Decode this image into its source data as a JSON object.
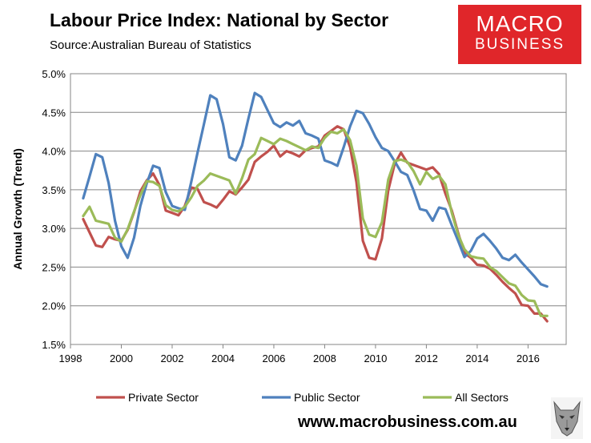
{
  "header": {
    "title": "Labour Price Index: National by Sector",
    "source": "Source:Australian Bureau of Statistics"
  },
  "logo": {
    "line1": "MACRO",
    "line2": "BUSINESS",
    "color": "#e0262a",
    "wolf_icon": "wolf-head-icon"
  },
  "footer": {
    "website": "www.macrobusiness.com.au"
  },
  "colors": {
    "private": "#c0504d",
    "public": "#4f81bd",
    "all": "#9bbb59"
  },
  "chart_data": {
    "type": "line",
    "title": "Labour Price Index: National by Sector",
    "ylabel": "Annual Growth (Trend)",
    "xlabel": "",
    "xlim": [
      1998,
      2017.5
    ],
    "ylim": [
      1.5,
      5.0
    ],
    "x_ticks": [
      1998,
      2000,
      2002,
      2004,
      2006,
      2008,
      2010,
      2012,
      2014,
      2016
    ],
    "y_ticks": [
      "1.5%",
      "2.0%",
      "2.5%",
      "3.0%",
      "3.5%",
      "4.0%",
      "4.5%",
      "5.0%"
    ],
    "grid": "horizontal",
    "legend": "bottom",
    "x": [
      1998.5,
      1998.75,
      1999.0,
      1999.25,
      1999.5,
      1999.75,
      2000.0,
      2000.25,
      2000.5,
      2000.75,
      2001.0,
      2001.25,
      2001.5,
      2001.75,
      2002.0,
      2002.25,
      2002.5,
      2002.75,
      2003.0,
      2003.25,
      2003.5,
      2003.75,
      2004.0,
      2004.25,
      2004.5,
      2004.75,
      2005.0,
      2005.25,
      2005.5,
      2005.75,
      2006.0,
      2006.25,
      2006.5,
      2006.75,
      2007.0,
      2007.25,
      2007.5,
      2007.75,
      2008.0,
      2008.25,
      2008.5,
      2008.75,
      2009.0,
      2009.25,
      2009.5,
      2009.75,
      2010.0,
      2010.25,
      2010.5,
      2010.75,
      2011.0,
      2011.25,
      2011.5,
      2011.75,
      2012.0,
      2012.25,
      2012.5,
      2012.75,
      2013.0,
      2013.25,
      2013.5,
      2013.75,
      2014.0,
      2014.25,
      2014.5,
      2014.75,
      2015.0,
      2015.25,
      2015.5,
      2015.75,
      2016.0,
      2016.25,
      2016.5,
      2016.75
    ],
    "series": [
      {
        "name": "Private Sector",
        "values": [
          3.12,
          2.95,
          2.78,
          2.76,
          2.89,
          2.86,
          2.84,
          2.98,
          3.21,
          3.48,
          3.62,
          3.71,
          3.56,
          3.23,
          3.2,
          3.17,
          3.29,
          3.53,
          3.51,
          3.34,
          3.31,
          3.27,
          3.37,
          3.48,
          3.44,
          3.53,
          3.63,
          3.86,
          3.93,
          3.99,
          4.07,
          3.93,
          4.0,
          3.97,
          3.93,
          4.01,
          4.04,
          4.06,
          4.2,
          4.26,
          4.32,
          4.28,
          4.05,
          3.6,
          2.84,
          2.62,
          2.6,
          2.87,
          3.49,
          3.83,
          3.98,
          3.85,
          3.82,
          3.79,
          3.76,
          3.79,
          3.7,
          3.45,
          3.23,
          2.94,
          2.68,
          2.62,
          2.53,
          2.52,
          2.48,
          2.4,
          2.31,
          2.23,
          2.16,
          2.01,
          2.0,
          1.9,
          1.9,
          1.8
        ]
      },
      {
        "name": "Public Sector",
        "values": [
          3.39,
          3.67,
          3.96,
          3.92,
          3.59,
          3.1,
          2.77,
          2.62,
          2.88,
          3.29,
          3.58,
          3.81,
          3.78,
          3.47,
          3.29,
          3.26,
          3.24,
          3.6,
          3.98,
          4.35,
          4.72,
          4.67,
          4.35,
          3.92,
          3.88,
          4.07,
          4.42,
          4.75,
          4.7,
          4.53,
          4.36,
          4.31,
          4.37,
          4.33,
          4.39,
          4.23,
          4.2,
          4.16,
          3.88,
          3.85,
          3.81,
          4.05,
          4.32,
          4.52,
          4.49,
          4.35,
          4.18,
          4.04,
          4.0,
          3.87,
          3.73,
          3.69,
          3.49,
          3.25,
          3.23,
          3.1,
          3.27,
          3.25,
          3.04,
          2.84,
          2.63,
          2.71,
          2.87,
          2.93,
          2.84,
          2.74,
          2.62,
          2.59,
          2.66,
          2.56,
          2.47,
          2.38,
          2.28,
          2.25
        ]
      },
      {
        "name": "All Sectors",
        "values": [
          3.16,
          3.28,
          3.1,
          3.08,
          3.06,
          2.88,
          2.83,
          2.99,
          3.22,
          3.43,
          3.61,
          3.6,
          3.55,
          3.3,
          3.24,
          3.22,
          3.28,
          3.4,
          3.55,
          3.62,
          3.71,
          3.68,
          3.65,
          3.62,
          3.45,
          3.65,
          3.89,
          3.96,
          4.17,
          4.13,
          4.09,
          4.16,
          4.13,
          4.09,
          4.05,
          4.01,
          4.06,
          4.04,
          4.17,
          4.25,
          4.23,
          4.28,
          4.14,
          3.81,
          3.13,
          2.92,
          2.89,
          3.08,
          3.63,
          3.87,
          3.89,
          3.86,
          3.74,
          3.57,
          3.73,
          3.64,
          3.68,
          3.57,
          3.2,
          2.92,
          2.73,
          2.64,
          2.62,
          2.61,
          2.5,
          2.45,
          2.37,
          2.29,
          2.26,
          2.14,
          2.07,
          2.06,
          1.87,
          1.87
        ]
      }
    ]
  }
}
